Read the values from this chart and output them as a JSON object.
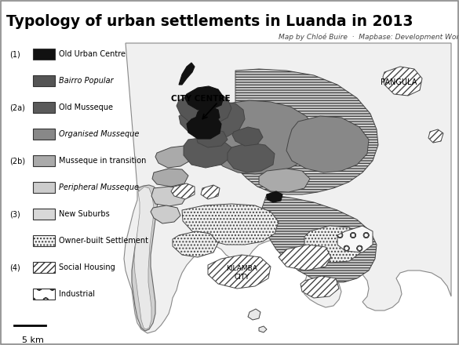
{
  "title": "Typology of urban settlements in Luanda in 2013",
  "subtitle": "Map by Chloé Buire  ·  Mapbase: Development Workshop",
  "title_fontsize": 13.5,
  "subtitle_fontsize": 6.5,
  "scale_text": "5 km",
  "background_color": "#ffffff",
  "legend_defs": [
    [
      "(1)",
      "Old Urban Centre",
      "#111111",
      null,
      false
    ],
    [
      "",
      "Bairro Popular",
      "#555555",
      null,
      true
    ],
    [
      "(2a)",
      "Old Musseque",
      "#5a5a5a",
      null,
      false
    ],
    [
      "",
      "Organised Musseque",
      "#888888",
      null,
      true
    ],
    [
      "(2b)",
      "Musseque in transition",
      "#aaaaaa",
      null,
      false
    ],
    [
      "",
      "Peripheral Musseque",
      "#cccccc",
      null,
      true
    ],
    [
      "(3)",
      "New Suburbs",
      "#d8d8d8",
      "====",
      false
    ],
    [
      "",
      "Owner-built Settlement",
      "#f5f5f5",
      "....",
      false
    ],
    [
      "(4)",
      "Social Housing",
      "#ffffff",
      "////",
      false
    ],
    [
      "",
      "Industrial",
      "#ffffff",
      "o",
      false
    ]
  ]
}
